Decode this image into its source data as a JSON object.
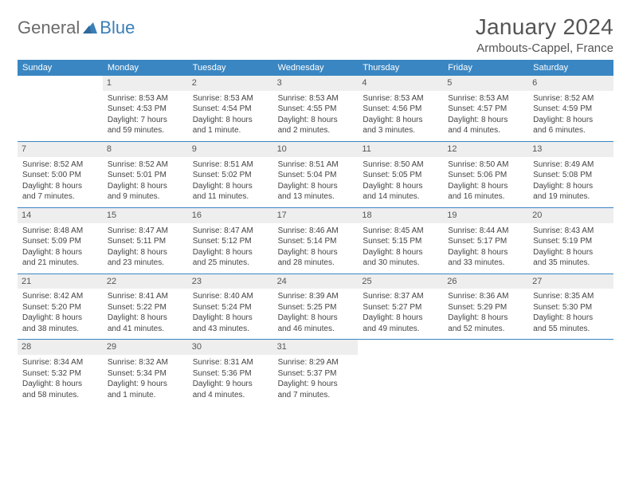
{
  "logo": {
    "part1": "General",
    "part2": "Blue"
  },
  "title": "January 2024",
  "location": "Armbouts-Cappel, France",
  "weekday_header_bg": "#3a86c2",
  "weekday_header_fg": "#ffffff",
  "daynum_bg": "#eeeeee",
  "week_border_color": "#3a86c2",
  "logo_gray": "#6b6b6b",
  "logo_blue": "#3a7fb8",
  "weekdays": [
    "Sunday",
    "Monday",
    "Tuesday",
    "Wednesday",
    "Thursday",
    "Friday",
    "Saturday"
  ],
  "weeks": [
    [
      {
        "n": "",
        "lines": []
      },
      {
        "n": "1",
        "lines": [
          "Sunrise: 8:53 AM",
          "Sunset: 4:53 PM",
          "Daylight: 7 hours",
          "and 59 minutes."
        ]
      },
      {
        "n": "2",
        "lines": [
          "Sunrise: 8:53 AM",
          "Sunset: 4:54 PM",
          "Daylight: 8 hours",
          "and 1 minute."
        ]
      },
      {
        "n": "3",
        "lines": [
          "Sunrise: 8:53 AM",
          "Sunset: 4:55 PM",
          "Daylight: 8 hours",
          "and 2 minutes."
        ]
      },
      {
        "n": "4",
        "lines": [
          "Sunrise: 8:53 AM",
          "Sunset: 4:56 PM",
          "Daylight: 8 hours",
          "and 3 minutes."
        ]
      },
      {
        "n": "5",
        "lines": [
          "Sunrise: 8:53 AM",
          "Sunset: 4:57 PM",
          "Daylight: 8 hours",
          "and 4 minutes."
        ]
      },
      {
        "n": "6",
        "lines": [
          "Sunrise: 8:52 AM",
          "Sunset: 4:59 PM",
          "Daylight: 8 hours",
          "and 6 minutes."
        ]
      }
    ],
    [
      {
        "n": "7",
        "lines": [
          "Sunrise: 8:52 AM",
          "Sunset: 5:00 PM",
          "Daylight: 8 hours",
          "and 7 minutes."
        ]
      },
      {
        "n": "8",
        "lines": [
          "Sunrise: 8:52 AM",
          "Sunset: 5:01 PM",
          "Daylight: 8 hours",
          "and 9 minutes."
        ]
      },
      {
        "n": "9",
        "lines": [
          "Sunrise: 8:51 AM",
          "Sunset: 5:02 PM",
          "Daylight: 8 hours",
          "and 11 minutes."
        ]
      },
      {
        "n": "10",
        "lines": [
          "Sunrise: 8:51 AM",
          "Sunset: 5:04 PM",
          "Daylight: 8 hours",
          "and 13 minutes."
        ]
      },
      {
        "n": "11",
        "lines": [
          "Sunrise: 8:50 AM",
          "Sunset: 5:05 PM",
          "Daylight: 8 hours",
          "and 14 minutes."
        ]
      },
      {
        "n": "12",
        "lines": [
          "Sunrise: 8:50 AM",
          "Sunset: 5:06 PM",
          "Daylight: 8 hours",
          "and 16 minutes."
        ]
      },
      {
        "n": "13",
        "lines": [
          "Sunrise: 8:49 AM",
          "Sunset: 5:08 PM",
          "Daylight: 8 hours",
          "and 19 minutes."
        ]
      }
    ],
    [
      {
        "n": "14",
        "lines": [
          "Sunrise: 8:48 AM",
          "Sunset: 5:09 PM",
          "Daylight: 8 hours",
          "and 21 minutes."
        ]
      },
      {
        "n": "15",
        "lines": [
          "Sunrise: 8:47 AM",
          "Sunset: 5:11 PM",
          "Daylight: 8 hours",
          "and 23 minutes."
        ]
      },
      {
        "n": "16",
        "lines": [
          "Sunrise: 8:47 AM",
          "Sunset: 5:12 PM",
          "Daylight: 8 hours",
          "and 25 minutes."
        ]
      },
      {
        "n": "17",
        "lines": [
          "Sunrise: 8:46 AM",
          "Sunset: 5:14 PM",
          "Daylight: 8 hours",
          "and 28 minutes."
        ]
      },
      {
        "n": "18",
        "lines": [
          "Sunrise: 8:45 AM",
          "Sunset: 5:15 PM",
          "Daylight: 8 hours",
          "and 30 minutes."
        ]
      },
      {
        "n": "19",
        "lines": [
          "Sunrise: 8:44 AM",
          "Sunset: 5:17 PM",
          "Daylight: 8 hours",
          "and 33 minutes."
        ]
      },
      {
        "n": "20",
        "lines": [
          "Sunrise: 8:43 AM",
          "Sunset: 5:19 PM",
          "Daylight: 8 hours",
          "and 35 minutes."
        ]
      }
    ],
    [
      {
        "n": "21",
        "lines": [
          "Sunrise: 8:42 AM",
          "Sunset: 5:20 PM",
          "Daylight: 8 hours",
          "and 38 minutes."
        ]
      },
      {
        "n": "22",
        "lines": [
          "Sunrise: 8:41 AM",
          "Sunset: 5:22 PM",
          "Daylight: 8 hours",
          "and 41 minutes."
        ]
      },
      {
        "n": "23",
        "lines": [
          "Sunrise: 8:40 AM",
          "Sunset: 5:24 PM",
          "Daylight: 8 hours",
          "and 43 minutes."
        ]
      },
      {
        "n": "24",
        "lines": [
          "Sunrise: 8:39 AM",
          "Sunset: 5:25 PM",
          "Daylight: 8 hours",
          "and 46 minutes."
        ]
      },
      {
        "n": "25",
        "lines": [
          "Sunrise: 8:37 AM",
          "Sunset: 5:27 PM",
          "Daylight: 8 hours",
          "and 49 minutes."
        ]
      },
      {
        "n": "26",
        "lines": [
          "Sunrise: 8:36 AM",
          "Sunset: 5:29 PM",
          "Daylight: 8 hours",
          "and 52 minutes."
        ]
      },
      {
        "n": "27",
        "lines": [
          "Sunrise: 8:35 AM",
          "Sunset: 5:30 PM",
          "Daylight: 8 hours",
          "and 55 minutes."
        ]
      }
    ],
    [
      {
        "n": "28",
        "lines": [
          "Sunrise: 8:34 AM",
          "Sunset: 5:32 PM",
          "Daylight: 8 hours",
          "and 58 minutes."
        ]
      },
      {
        "n": "29",
        "lines": [
          "Sunrise: 8:32 AM",
          "Sunset: 5:34 PM",
          "Daylight: 9 hours",
          "and 1 minute."
        ]
      },
      {
        "n": "30",
        "lines": [
          "Sunrise: 8:31 AM",
          "Sunset: 5:36 PM",
          "Daylight: 9 hours",
          "and 4 minutes."
        ]
      },
      {
        "n": "31",
        "lines": [
          "Sunrise: 8:29 AM",
          "Sunset: 5:37 PM",
          "Daylight: 9 hours",
          "and 7 minutes."
        ]
      },
      {
        "n": "",
        "lines": []
      },
      {
        "n": "",
        "lines": []
      },
      {
        "n": "",
        "lines": []
      }
    ]
  ]
}
